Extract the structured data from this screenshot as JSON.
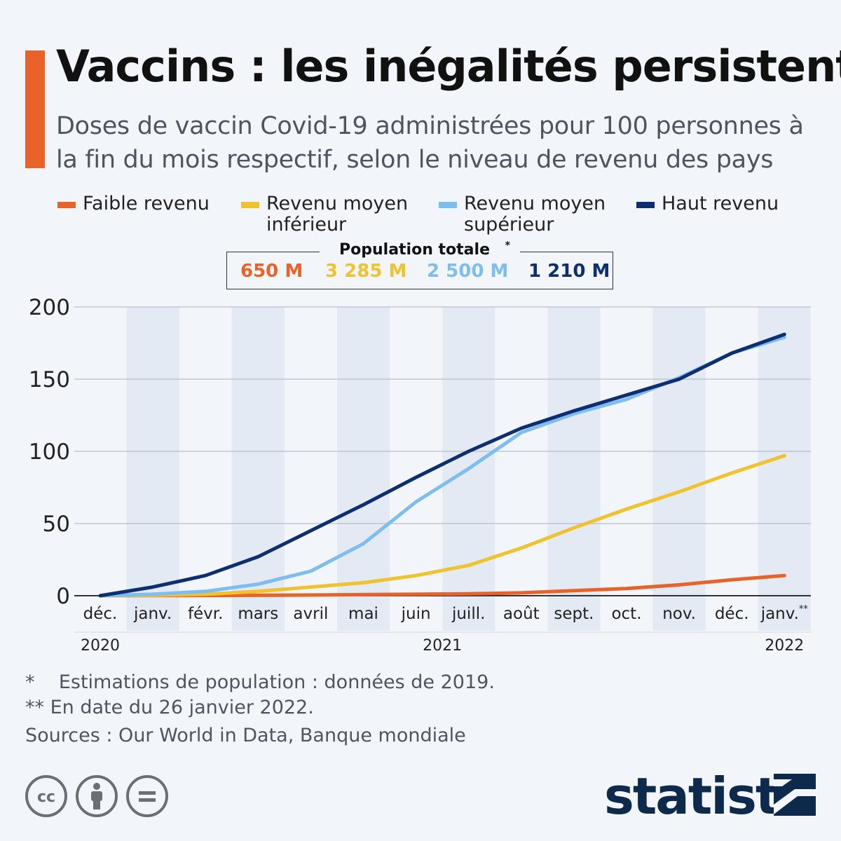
{
  "header": {
    "title": "Vaccins : les inégalités persistent",
    "subtitle": "Doses de vaccin Covid-19 administrées pour 100 personnes à la fin du mois respectif, selon le niveau de revenu des pays"
  },
  "legend": {
    "items": [
      {
        "label": "Faible revenu",
        "color": "#e8632a"
      },
      {
        "label": "Revenu moyen\ninférieur",
        "color": "#f0c22e"
      },
      {
        "label": "Revenu moyen\nsupérieur",
        "color": "#7dbdf0"
      },
      {
        "label": "Haut revenu",
        "color": "#0d2f72"
      }
    ]
  },
  "population": {
    "title": "Population totale",
    "title_mark": "*",
    "values": [
      {
        "label": "650 M",
        "color": "#e8632a"
      },
      {
        "label": "3 285 M",
        "color": "#f0c22e"
      },
      {
        "label": "2 500 M",
        "color": "#7dbdf0"
      },
      {
        "label": "1 210 M",
        "color": "#0d2f72"
      }
    ]
  },
  "chart_data": {
    "type": "line",
    "title": "Vaccins : les inégalités persistent",
    "subtitle": "Doses de vaccin Covid-19 administrées pour 100 personnes à la fin du mois respectif, selon le niveau de revenu des pays",
    "categories": [
      "déc.",
      "janv.",
      "févr.",
      "mars",
      "avril",
      "mai",
      "juin",
      "juill.",
      "août",
      "sept.",
      "oct.",
      "nov.",
      "déc.",
      "janv."
    ],
    "last_category_mark": "**",
    "year_labels": [
      {
        "label": "2020",
        "at": 0
      },
      {
        "label": "2021",
        "at": 6.5
      },
      {
        "label": "2022",
        "at": 13
      }
    ],
    "ylim": [
      0,
      200
    ],
    "yticks": [
      0,
      50,
      100,
      150,
      200
    ],
    "grid": true,
    "legend_position": "top",
    "series": [
      {
        "name": "Faible revenu",
        "color": "#e8632a",
        "values": [
          0,
          0.1,
          0.2,
          0.3,
          0.5,
          0.8,
          1,
          1.3,
          2,
          3.5,
          5,
          7.5,
          11,
          14
        ]
      },
      {
        "name": "Revenu moyen inférieur",
        "color": "#f0c22e",
        "values": [
          0,
          0.3,
          1,
          3,
          6,
          9,
          14,
          21,
          33,
          47,
          60,
          72,
          85,
          97
        ]
      },
      {
        "name": "Revenu moyen supérieur",
        "color": "#7dbdf0",
        "values": [
          0,
          1,
          3,
          8,
          17,
          36,
          65,
          88,
          113,
          126,
          136,
          151,
          168,
          179
        ]
      },
      {
        "name": "Haut revenu",
        "color": "#0d2f72",
        "values": [
          0,
          6,
          14,
          27,
          45,
          63,
          82,
          100,
          116,
          128,
          139,
          150,
          168,
          181
        ]
      }
    ]
  },
  "notes": [
    {
      "mark": "*",
      "text": "Estimations de population : données de 2019."
    },
    {
      "mark": "**",
      "text": "En date du 26 janvier 2022."
    }
  ],
  "sources": "Sources : Our World in Data, Banque mondiale",
  "footer": {
    "brand": "statista",
    "license_icons": [
      "cc-icon",
      "attribution-icon",
      "no-derivatives-icon"
    ]
  }
}
